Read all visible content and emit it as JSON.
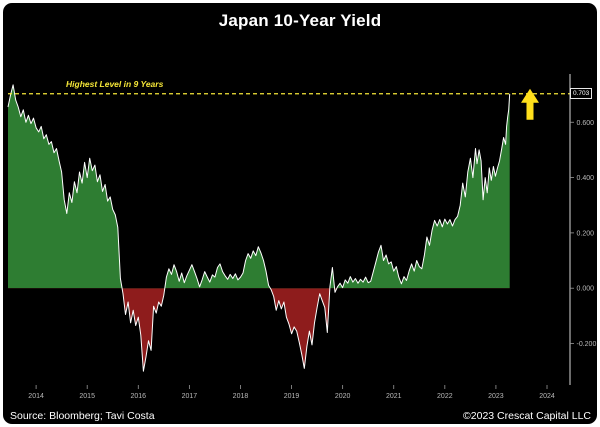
{
  "title": "Japan 10-Year Yield",
  "annotation": {
    "label": "Highest Level in 9 Years",
    "value_label": "0.703"
  },
  "footer": {
    "source": "Source: Bloomberg; Tavi Costa",
    "copyright": "©2023 Crescat Capital LLC"
  },
  "colors": {
    "background": "#000000",
    "frame": "#ffffff",
    "positive_fill": "#2e7d32",
    "negative_fill": "#8e1c1c",
    "line": "#ffffff",
    "highlight": "#f6e738",
    "arrow": "#ffdf1b",
    "tick_text": "#b9b9b9",
    "title_text": "#ffffff"
  },
  "chart_data": {
    "type": "area",
    "title": "Japan 10-Year Yield",
    "xlabel": "",
    "ylabel": "",
    "legend": false,
    "grid": false,
    "xlim": [
      2013.9,
      2024.9
    ],
    "ylim": [
      -0.35,
      0.76
    ],
    "highest_level": 0.703,
    "x_ticks": [
      {
        "x": 2014.45,
        "label": "2014"
      },
      {
        "x": 2015.45,
        "label": "2015"
      },
      {
        "x": 2016.45,
        "label": "2016"
      },
      {
        "x": 2017.45,
        "label": "2017"
      },
      {
        "x": 2018.45,
        "label": "2018"
      },
      {
        "x": 2019.45,
        "label": "2019"
      },
      {
        "x": 2020.45,
        "label": "2020"
      },
      {
        "x": 2021.45,
        "label": "2021"
      },
      {
        "x": 2022.45,
        "label": "2022"
      },
      {
        "x": 2023.45,
        "label": "2023"
      },
      {
        "x": 2024.45,
        "label": "2024"
      }
    ],
    "y_ticks": [
      {
        "y": 0.6,
        "label": "0.600"
      },
      {
        "y": 0.4,
        "label": "0.400"
      },
      {
        "y": 0.2,
        "label": "0.200"
      },
      {
        "y": 0.0,
        "label": "0.000"
      },
      {
        "y": -0.2,
        "label": "-0.200"
      }
    ],
    "series": [
      {
        "name": "Japan 10-Year Yield",
        "points": [
          [
            2013.9,
            0.655
          ],
          [
            2013.95,
            0.7
          ],
          [
            2014.0,
            0.735
          ],
          [
            2014.05,
            0.68
          ],
          [
            2014.1,
            0.655
          ],
          [
            2014.15,
            0.62
          ],
          [
            2014.2,
            0.645
          ],
          [
            2014.25,
            0.6
          ],
          [
            2014.3,
            0.625
          ],
          [
            2014.35,
            0.595
          ],
          [
            2014.4,
            0.615
          ],
          [
            2014.45,
            0.58
          ],
          [
            2014.5,
            0.565
          ],
          [
            2014.55,
            0.585
          ],
          [
            2014.6,
            0.54
          ],
          [
            2014.65,
            0.555
          ],
          [
            2014.7,
            0.52
          ],
          [
            2014.75,
            0.53
          ],
          [
            2014.8,
            0.49
          ],
          [
            2014.85,
            0.505
          ],
          [
            2014.9,
            0.46
          ],
          [
            2014.95,
            0.42
          ],
          [
            2015.0,
            0.32
          ],
          [
            2015.05,
            0.27
          ],
          [
            2015.1,
            0.345
          ],
          [
            2015.15,
            0.31
          ],
          [
            2015.2,
            0.385
          ],
          [
            2015.25,
            0.345
          ],
          [
            2015.3,
            0.42
          ],
          [
            2015.35,
            0.38
          ],
          [
            2015.4,
            0.455
          ],
          [
            2015.45,
            0.4
          ],
          [
            2015.5,
            0.47
          ],
          [
            2015.55,
            0.425
          ],
          [
            2015.6,
            0.445
          ],
          [
            2015.65,
            0.385
          ],
          [
            2015.7,
            0.41
          ],
          [
            2015.75,
            0.35
          ],
          [
            2015.8,
            0.375
          ],
          [
            2015.85,
            0.315
          ],
          [
            2015.9,
            0.33
          ],
          [
            2015.95,
            0.285
          ],
          [
            2016.0,
            0.265
          ],
          [
            2016.05,
            0.22
          ],
          [
            2016.1,
            0.035
          ],
          [
            2016.15,
            -0.02
          ],
          [
            2016.2,
            -0.095
          ],
          [
            2016.25,
            -0.05
          ],
          [
            2016.3,
            -0.125
          ],
          [
            2016.35,
            -0.08
          ],
          [
            2016.4,
            -0.135
          ],
          [
            2016.45,
            -0.105
          ],
          [
            2016.5,
            -0.17
          ],
          [
            2016.55,
            -0.3
          ],
          [
            2016.6,
            -0.25
          ],
          [
            2016.65,
            -0.19
          ],
          [
            2016.7,
            -0.225
          ],
          [
            2016.75,
            -0.065
          ],
          [
            2016.8,
            -0.09
          ],
          [
            2016.85,
            -0.05
          ],
          [
            2016.9,
            -0.065
          ],
          [
            2016.95,
            -0.025
          ],
          [
            2017.0,
            0.04
          ],
          [
            2017.05,
            0.07
          ],
          [
            2017.1,
            0.05
          ],
          [
            2017.15,
            0.085
          ],
          [
            2017.2,
            0.06
          ],
          [
            2017.25,
            0.025
          ],
          [
            2017.3,
            0.055
          ],
          [
            2017.35,
            0.02
          ],
          [
            2017.4,
            0.045
          ],
          [
            2017.45,
            0.065
          ],
          [
            2017.5,
            0.085
          ],
          [
            2017.55,
            0.06
          ],
          [
            2017.6,
            0.035
          ],
          [
            2017.65,
            0.005
          ],
          [
            2017.7,
            0.03
          ],
          [
            2017.75,
            0.06
          ],
          [
            2017.8,
            0.04
          ],
          [
            2017.85,
            0.022
          ],
          [
            2017.9,
            0.048
          ],
          [
            2017.95,
            0.04
          ],
          [
            2018.0,
            0.075
          ],
          [
            2018.05,
            0.088
          ],
          [
            2018.1,
            0.06
          ],
          [
            2018.15,
            0.045
          ],
          [
            2018.2,
            0.032
          ],
          [
            2018.25,
            0.05
          ],
          [
            2018.3,
            0.035
          ],
          [
            2018.35,
            0.052
          ],
          [
            2018.4,
            0.03
          ],
          [
            2018.45,
            0.04
          ],
          [
            2018.5,
            0.055
          ],
          [
            2018.55,
            0.1
          ],
          [
            2018.6,
            0.125
          ],
          [
            2018.65,
            0.108
          ],
          [
            2018.7,
            0.135
          ],
          [
            2018.75,
            0.118
          ],
          [
            2018.8,
            0.15
          ],
          [
            2018.85,
            0.128
          ],
          [
            2018.9,
            0.1
          ],
          [
            2018.95,
            0.062
          ],
          [
            2019.0,
            0.01
          ],
          [
            2019.05,
            -0.005
          ],
          [
            2019.1,
            -0.03
          ],
          [
            2019.15,
            -0.08
          ],
          [
            2019.2,
            -0.045
          ],
          [
            2019.25,
            -0.075
          ],
          [
            2019.3,
            -0.05
          ],
          [
            2019.35,
            -0.105
          ],
          [
            2019.4,
            -0.13
          ],
          [
            2019.45,
            -0.165
          ],
          [
            2019.5,
            -0.14
          ],
          [
            2019.55,
            -0.155
          ],
          [
            2019.6,
            -0.195
          ],
          [
            2019.65,
            -0.24
          ],
          [
            2019.7,
            -0.29
          ],
          [
            2019.75,
            -0.21
          ],
          [
            2019.8,
            -0.155
          ],
          [
            2019.85,
            -0.205
          ],
          [
            2019.9,
            -0.125
          ],
          [
            2019.95,
            -0.07
          ],
          [
            2020.0,
            -0.02
          ],
          [
            2020.05,
            -0.045
          ],
          [
            2020.1,
            -0.07
          ],
          [
            2020.15,
            -0.16
          ],
          [
            2020.2,
            0.005
          ],
          [
            2020.25,
            0.075
          ],
          [
            2020.3,
            -0.015
          ],
          [
            2020.35,
            0.005
          ],
          [
            2020.4,
            0.018
          ],
          [
            2020.45,
            0.002
          ],
          [
            2020.5,
            0.03
          ],
          [
            2020.55,
            0.018
          ],
          [
            2020.6,
            0.042
          ],
          [
            2020.65,
            0.022
          ],
          [
            2020.7,
            0.035
          ],
          [
            2020.75,
            0.018
          ],
          [
            2020.8,
            0.032
          ],
          [
            2020.85,
            0.022
          ],
          [
            2020.9,
            0.04
          ],
          [
            2020.95,
            0.02
          ],
          [
            2021.0,
            0.025
          ],
          [
            2021.05,
            0.06
          ],
          [
            2021.1,
            0.095
          ],
          [
            2021.15,
            0.13
          ],
          [
            2021.2,
            0.155
          ],
          [
            2021.25,
            0.1
          ],
          [
            2021.3,
            0.12
          ],
          [
            2021.35,
            0.088
          ],
          [
            2021.4,
            0.095
          ],
          [
            2021.45,
            0.062
          ],
          [
            2021.5,
            0.078
          ],
          [
            2021.55,
            0.04
          ],
          [
            2021.6,
            0.016
          ],
          [
            2021.65,
            0.042
          ],
          [
            2021.7,
            0.028
          ],
          [
            2021.75,
            0.062
          ],
          [
            2021.8,
            0.088
          ],
          [
            2021.85,
            0.062
          ],
          [
            2021.9,
            0.1
          ],
          [
            2021.95,
            0.078
          ],
          [
            2022.0,
            0.07
          ],
          [
            2022.05,
            0.12
          ],
          [
            2022.1,
            0.185
          ],
          [
            2022.15,
            0.155
          ],
          [
            2022.2,
            0.21
          ],
          [
            2022.25,
            0.245
          ],
          [
            2022.3,
            0.225
          ],
          [
            2022.35,
            0.248
          ],
          [
            2022.4,
            0.222
          ],
          [
            2022.45,
            0.25
          ],
          [
            2022.5,
            0.232
          ],
          [
            2022.55,
            0.248
          ],
          [
            2022.6,
            0.225
          ],
          [
            2022.65,
            0.248
          ],
          [
            2022.7,
            0.26
          ],
          [
            2022.75,
            0.3
          ],
          [
            2022.8,
            0.38
          ],
          [
            2022.85,
            0.33
          ],
          [
            2022.9,
            0.42
          ],
          [
            2022.95,
            0.47
          ],
          [
            2023.0,
            0.4
          ],
          [
            2023.05,
            0.505
          ],
          [
            2023.08,
            0.45
          ],
          [
            2023.12,
            0.5
          ],
          [
            2023.16,
            0.46
          ],
          [
            2023.2,
            0.32
          ],
          [
            2023.24,
            0.4
          ],
          [
            2023.28,
            0.345
          ],
          [
            2023.32,
            0.435
          ],
          [
            2023.36,
            0.39
          ],
          [
            2023.4,
            0.44
          ],
          [
            2023.44,
            0.405
          ],
          [
            2023.48,
            0.435
          ],
          [
            2023.52,
            0.46
          ],
          [
            2023.56,
            0.5
          ],
          [
            2023.6,
            0.545
          ],
          [
            2023.64,
            0.52
          ],
          [
            2023.66,
            0.585
          ],
          [
            2023.68,
            0.62
          ],
          [
            2023.7,
            0.645
          ],
          [
            2023.72,
            0.703
          ]
        ]
      }
    ]
  }
}
